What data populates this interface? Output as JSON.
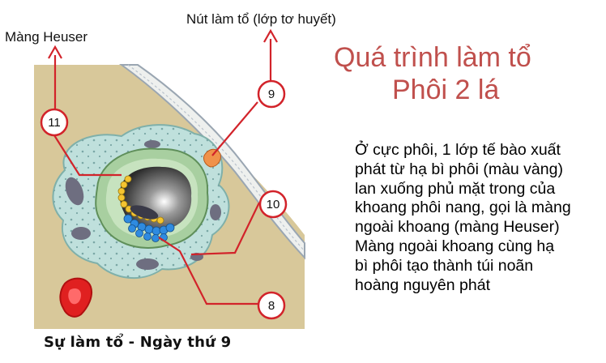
{
  "labels": {
    "heuser": "Màng Heuser",
    "node": "Nút làm tổ (lớp tơ huyết)"
  },
  "title": {
    "line1": "Quá trình làm tổ",
    "line2": "Phôi 2 lá"
  },
  "description": [
    "Ở cực phôi, 1 lớp tế bào xuất",
    "phát từ hạ bì phôi (màu vàng)",
    "lan xuống phủ mặt trong của",
    "khoang phôi nang, gọi là màng",
    "ngoài khoang (màng Heuser)",
    "Màng ngoài khoang cùng hạ",
    "bì phôi tạo thành túi noãn",
    "hoàng nguyên phát"
  ],
  "callouts": [
    "11",
    "9",
    "10",
    "8"
  ],
  "caption": "Sự làm tổ - Ngày thứ 9",
  "colors": {
    "title": "#c0504d",
    "callout_line": "#d2232a",
    "endometrium": "#d8c89a",
    "syncytio": "#bfe0dc",
    "epiblast": "#2f8be0",
    "hypoblast": "#f4c430"
  }
}
